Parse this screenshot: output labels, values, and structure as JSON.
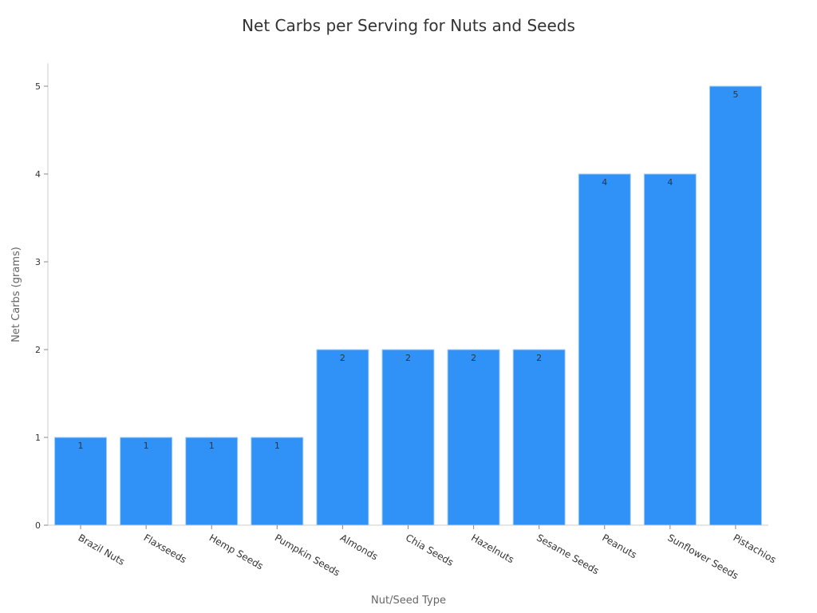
{
  "chart_data": {
    "type": "bar",
    "title": "Net Carbs per Serving for Nuts and Seeds",
    "xlabel": "Nut/Seed Type",
    "ylabel": "Net Carbs (grams)",
    "categories": [
      "Brazil Nuts",
      "Flaxseeds",
      "Hemp Seeds",
      "Pumpkin Seeds",
      "Almonds",
      "Chia Seeds",
      "Hazelnuts",
      "Sesame Seeds",
      "Peanuts",
      "Sunflower Seeds",
      "Pistachios"
    ],
    "values": [
      1,
      1,
      1,
      1,
      2,
      2,
      2,
      2,
      4,
      4,
      5
    ],
    "data_labels": [
      "1",
      "1",
      "1",
      "1",
      "2",
      "2",
      "2",
      "2",
      "4",
      "4",
      "5"
    ],
    "yticks": [
      0,
      1,
      2,
      3,
      4,
      5
    ],
    "ylim": [
      0,
      5.26
    ],
    "grid": false,
    "legend": null,
    "bar_color": "#3092f7",
    "bar_edge_color": "#a8cdf5"
  }
}
